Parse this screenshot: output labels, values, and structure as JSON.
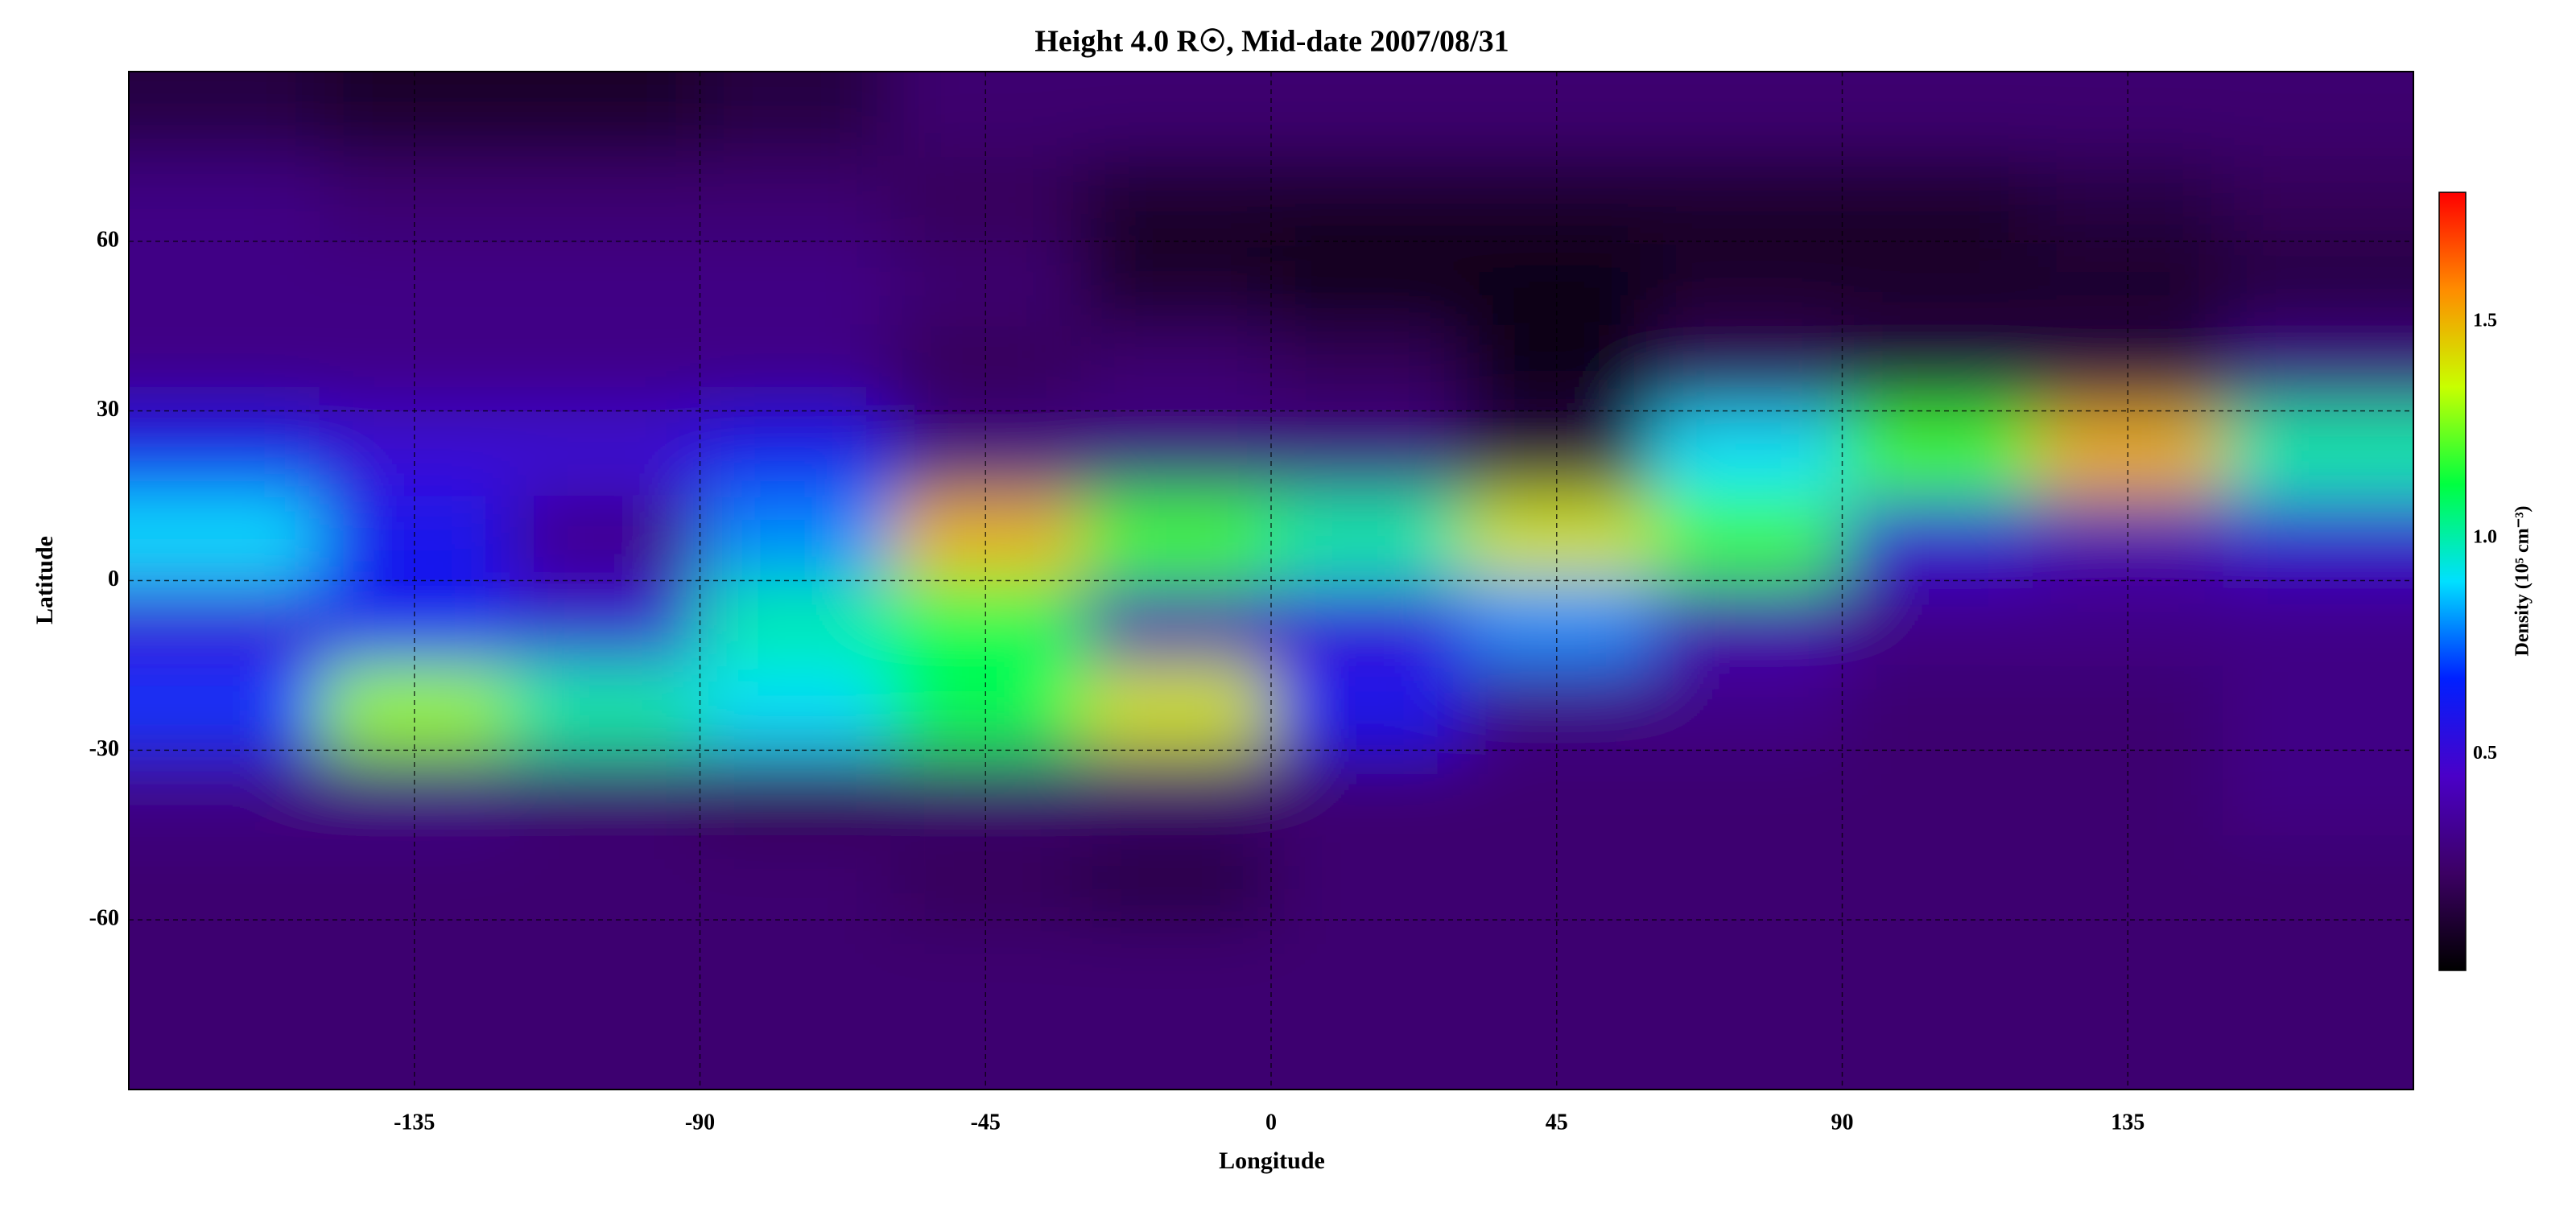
{
  "chart_data": {
    "type": "heatmap",
    "title": "Height 4.0 R☉, Mid-date 2007/08/31",
    "x_label": "Longitude",
    "y_label": "Latitude",
    "colorbar_label": "Density (10⁵ cm⁻³)",
    "x": [
      -165,
      -135,
      -105,
      -75,
      -45,
      -15,
      15,
      45,
      75,
      105,
      135,
      165
    ],
    "y": [
      82.5,
      67.5,
      52.5,
      37.5,
      22.5,
      7.5,
      -7.5,
      -22.5,
      -37.5,
      -52.5,
      -67.5,
      -82.5
    ],
    "z": [
      [
        0.15,
        0.1,
        0.1,
        0.15,
        0.25,
        0.25,
        0.25,
        0.25,
        0.25,
        0.25,
        0.25,
        0.25
      ],
      [
        0.3,
        0.25,
        0.25,
        0.25,
        0.2,
        0.1,
        0.1,
        0.1,
        0.1,
        0.1,
        0.15,
        0.2
      ],
      [
        0.3,
        0.3,
        0.3,
        0.3,
        0.25,
        0.1,
        0.05,
        0.05,
        0.1,
        0.1,
        0.1,
        0.15
      ],
      [
        0.3,
        0.3,
        0.3,
        0.3,
        0.2,
        0.25,
        0.2,
        0.05,
        0.2,
        0.15,
        0.15,
        0.3
      ],
      [
        0.6,
        0.5,
        0.5,
        0.6,
        0.3,
        0.3,
        0.3,
        0.15,
        0.9,
        1.2,
        1.5,
        1.0
      ],
      [
        0.9,
        0.6,
        0.3,
        0.8,
        1.5,
        1.2,
        1.0,
        1.4,
        1.2,
        0.5,
        0.4,
        0.5
      ],
      [
        0.5,
        0.6,
        0.5,
        1.0,
        1.1,
        0.4,
        0.5,
        0.8,
        0.4,
        0.3,
        0.3,
        0.3
      ],
      [
        0.7,
        1.3,
        1.0,
        0.9,
        1.1,
        1.4,
        0.6,
        0.3,
        0.3,
        0.25,
        0.25,
        0.3
      ],
      [
        0.3,
        0.3,
        0.25,
        0.2,
        0.25,
        0.25,
        0.25,
        0.25,
        0.25,
        0.25,
        0.25,
        0.3
      ],
      [
        0.25,
        0.25,
        0.25,
        0.25,
        0.2,
        0.15,
        0.25,
        0.25,
        0.25,
        0.25,
        0.25,
        0.25
      ],
      [
        0.25,
        0.25,
        0.25,
        0.25,
        0.25,
        0.25,
        0.25,
        0.25,
        0.25,
        0.25,
        0.25,
        0.25
      ],
      [
        0.25,
        0.25,
        0.25,
        0.25,
        0.25,
        0.25,
        0.25,
        0.25,
        0.25,
        0.25,
        0.25,
        0.25
      ]
    ],
    "xlim": [
      -180,
      180
    ],
    "xticks": [
      -135,
      -90,
      -45,
      0,
      45,
      90,
      135
    ],
    "ylim": [
      -90,
      90
    ],
    "yticks": [
      -60,
      -30,
      0,
      30,
      60
    ],
    "clim": [
      0,
      1.8
    ],
    "cticks": [
      0.5,
      {
        "value": 1,
        "label": "1.0"
      },
      1.5
    ],
    "colorscale": [
      "#000000",
      "#3c0064",
      "#4a00c8",
      "#0020ff",
      "#00e0ff",
      "#00ff40",
      "#c8ff00",
      "#ff8c00",
      "#ff0000"
    ],
    "grid": true
  }
}
